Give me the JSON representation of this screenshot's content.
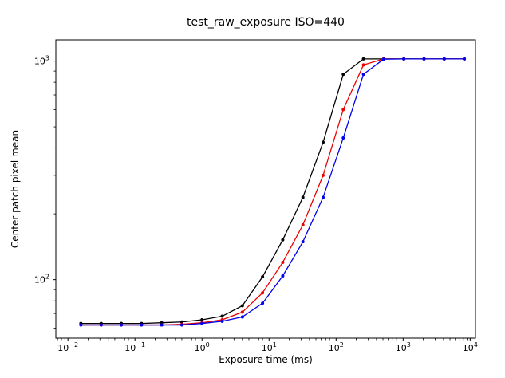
{
  "chart_data": {
    "type": "line",
    "title": "test_raw_exposure ISO=440",
    "xlabel": "Exposure time (ms)",
    "ylabel": "Center patch pixel mean",
    "xscale": "log",
    "yscale": "log",
    "xlim": [
      0.0066,
      12000
    ],
    "ylim": [
      54,
      1250
    ],
    "x_tick_exponents": [
      -2,
      -1,
      0,
      1,
      2,
      3,
      4
    ],
    "y_tick_exponents": [
      2,
      3
    ],
    "grid": false,
    "legend": "none",
    "marker": "point",
    "x": [
      0.0156,
      0.0313,
      0.0625,
      0.125,
      0.25,
      0.5,
      1,
      2,
      4,
      8,
      16,
      32,
      64,
      128,
      256,
      512,
      1024,
      2048,
      4096,
      8192
    ],
    "series": [
      {
        "name": "black",
        "color": "#000000",
        "values": [
          63,
          63,
          63,
          63,
          63.5,
          64,
          65.5,
          68,
          76,
          103,
          152,
          238,
          425,
          870,
          1023,
          1023,
          1023,
          1023,
          1023,
          1023
        ]
      },
      {
        "name": "red",
        "color": "#ee0000",
        "values": [
          62,
          62,
          62,
          62,
          62,
          62.5,
          63.5,
          65.5,
          71,
          87,
          120,
          178,
          300,
          600,
          960,
          1023,
          1023,
          1023,
          1023,
          1023
        ]
      },
      {
        "name": "blue",
        "color": "#0000ee",
        "values": [
          62,
          62,
          62,
          62,
          62,
          62,
          63,
          64.5,
          67.5,
          78,
          104,
          149,
          238,
          445,
          870,
          1020,
          1023,
          1023,
          1023,
          1023
        ]
      }
    ]
  }
}
